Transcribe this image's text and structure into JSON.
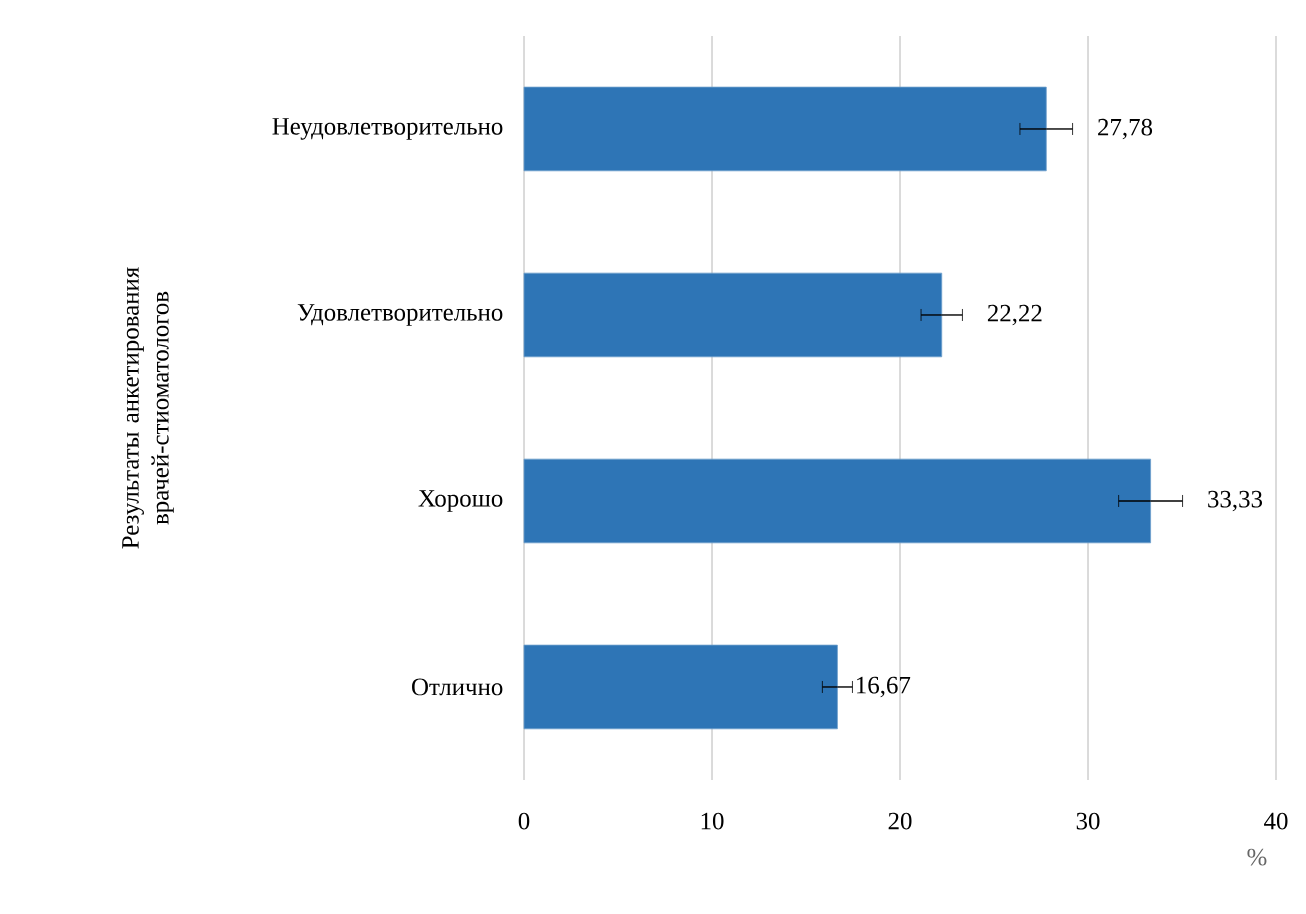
{
  "chart_data": {
    "type": "bar",
    "orientation": "horizontal",
    "ylabel": "Результаты анкетирования врачей-стиоматологов",
    "xlabel": "%",
    "categories": [
      "Неудовлетворительно",
      "Удовлетворительно",
      "Хорошо",
      "Отлично"
    ],
    "values": [
      27.78,
      22.22,
      33.33,
      16.67
    ],
    "errors": [
      1.4,
      1.1,
      1.7,
      0.8
    ],
    "value_labels": [
      "27,78",
      "22,22",
      "33,33",
      "16,67"
    ],
    "color": "#2e75b6",
    "xlim": [
      0,
      40
    ],
    "xticks": [
      0,
      10,
      20,
      30,
      40
    ],
    "grid": "x"
  }
}
